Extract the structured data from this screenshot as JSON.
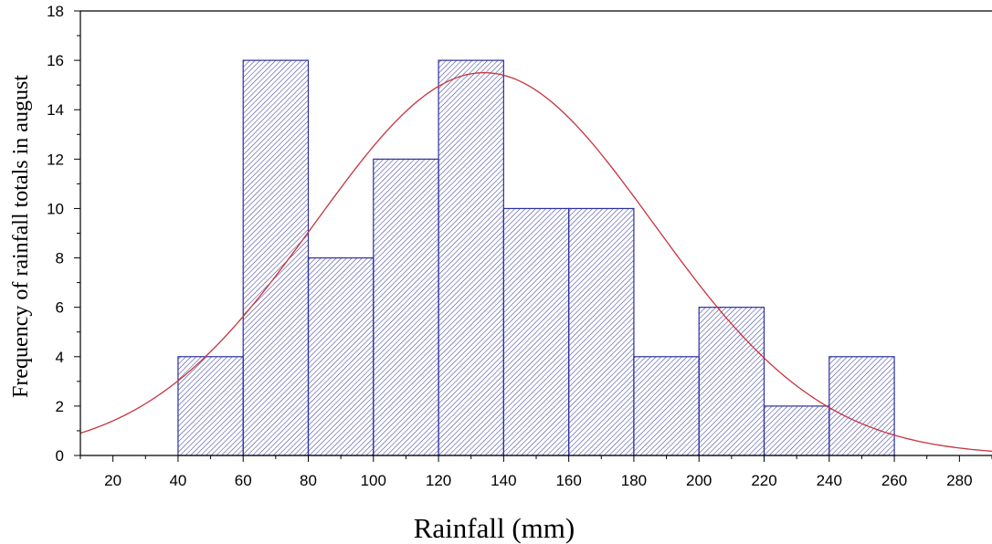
{
  "chart_data": {
    "type": "bar",
    "subtype": "histogram-with-normal-fit",
    "title": "",
    "xlabel": "Rainfall (mm)",
    "ylabel": "Frequency of rainfall totals in august",
    "xlim": [
      10,
      290
    ],
    "ylim": [
      0,
      18
    ],
    "xticks": [
      20,
      40,
      60,
      80,
      100,
      120,
      140,
      160,
      180,
      200,
      220,
      240,
      260,
      280
    ],
    "yticks": [
      0,
      2,
      4,
      6,
      8,
      10,
      12,
      14,
      16,
      18
    ],
    "bins": [
      {
        "start": 40,
        "end": 60,
        "value": 4
      },
      {
        "start": 60,
        "end": 80,
        "value": 16
      },
      {
        "start": 80,
        "end": 100,
        "value": 8
      },
      {
        "start": 100,
        "end": 120,
        "value": 12
      },
      {
        "start": 120,
        "end": 140,
        "value": 16
      },
      {
        "start": 140,
        "end": 160,
        "value": 10
      },
      {
        "start": 160,
        "end": 180,
        "value": 10
      },
      {
        "start": 180,
        "end": 200,
        "value": 4
      },
      {
        "start": 200,
        "end": 220,
        "value": 6
      },
      {
        "start": 220,
        "end": 240,
        "value": 2
      },
      {
        "start": 240,
        "end": 260,
        "value": 4
      }
    ],
    "normal_fit": {
      "mean": 134,
      "sd": 52,
      "peak": 15.5
    },
    "grid": false,
    "legend": "none",
    "colors": {
      "bar_stroke": "#2b2f9e",
      "hatch": "#3a3f9e",
      "curve": "#c8323c",
      "axis": "#000000"
    }
  }
}
